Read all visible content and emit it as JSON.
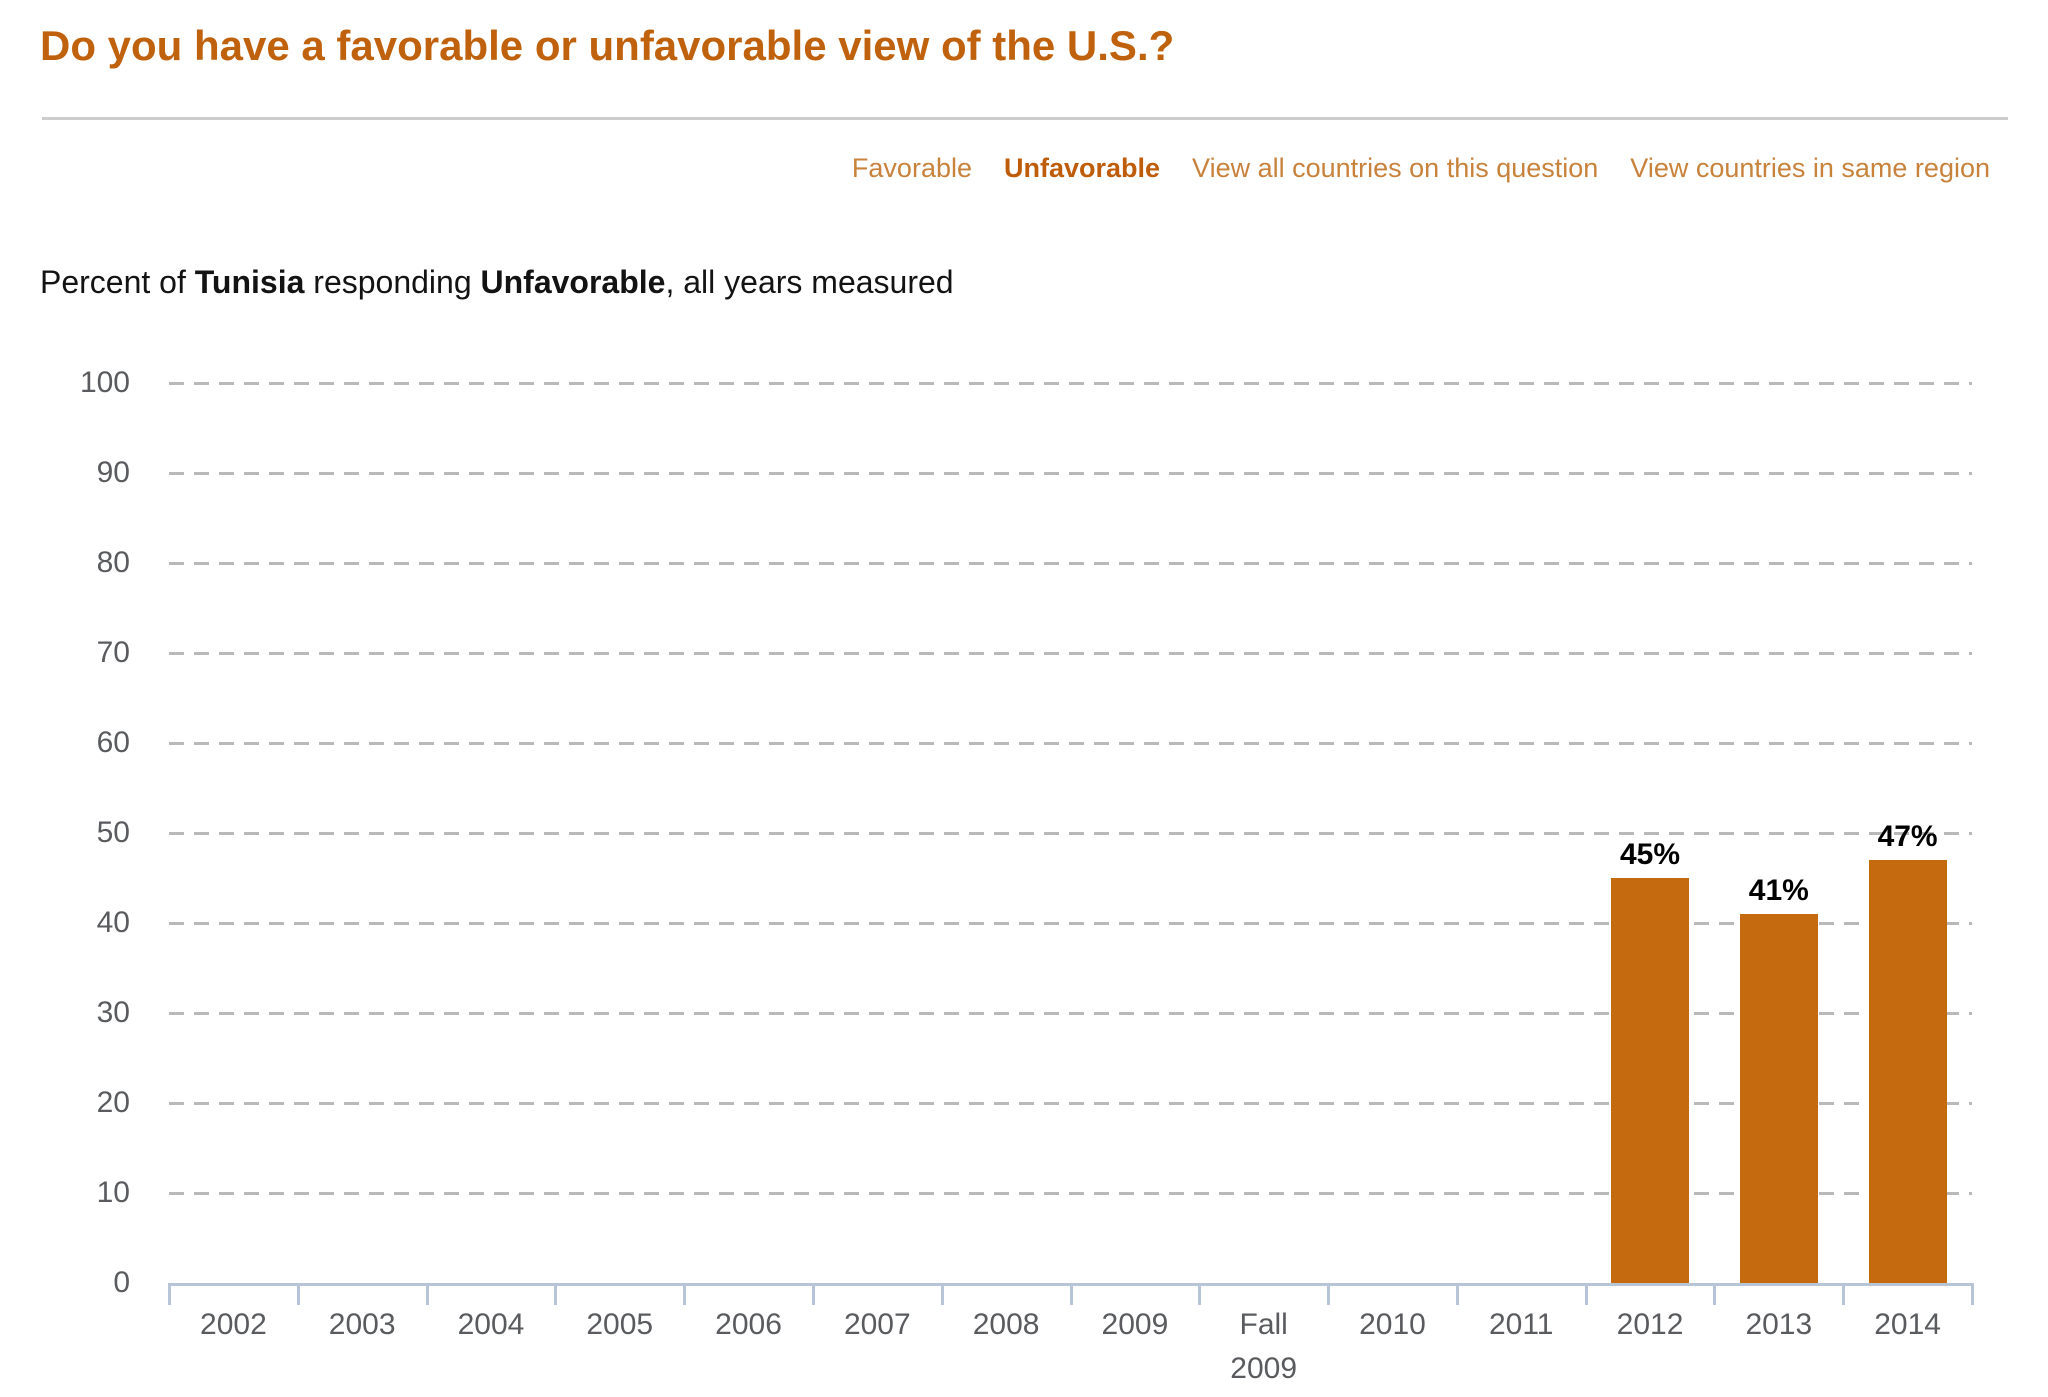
{
  "header": {
    "title": "Do you have a favorable or unfavorable view of the U.S.?"
  },
  "nav": {
    "links": [
      {
        "label": "Favorable",
        "active": false
      },
      {
        "label": "Unfavorable",
        "active": true
      },
      {
        "label": "View all countries on this question",
        "active": false
      },
      {
        "label": "View countries in same region",
        "active": false
      }
    ]
  },
  "subtitle": {
    "prefix": "Percent of ",
    "country": "Tunisia",
    "middle": " responding ",
    "response": "Unfavorable",
    "suffix": ", all years measured"
  },
  "chart_data": {
    "type": "bar",
    "title": "Percent of Tunisia responding Unfavorable, all years measured",
    "categories": [
      "2002",
      "2003",
      "2004",
      "2005",
      "2006",
      "2007",
      "2008",
      "2009",
      "Fall 2009",
      "2010",
      "2011",
      "2012",
      "2013",
      "2014"
    ],
    "values": [
      null,
      null,
      null,
      null,
      null,
      null,
      null,
      null,
      null,
      null,
      null,
      45,
      41,
      47
    ],
    "value_labels": [
      null,
      null,
      null,
      null,
      null,
      null,
      null,
      null,
      null,
      null,
      null,
      "45%",
      "41%",
      "47%"
    ],
    "xlabel": "",
    "ylabel": "",
    "ylim": [
      0,
      100
    ],
    "yticks": [
      0,
      10,
      20,
      30,
      40,
      50,
      60,
      70,
      80,
      90,
      100
    ],
    "grid": "horizontal-dashed",
    "legend": "none",
    "bar_color": "#c66a0f"
  },
  "colors": {
    "title_accent": "#c0620d",
    "nav_link": "#c8823c",
    "nav_link_active": "#bf5c0a",
    "bar": "#c66a0f",
    "grid": "#b9b9b9",
    "axis": "#b7c5d6",
    "axis_text": "#595b5e",
    "divider": "#cdcdcd"
  }
}
